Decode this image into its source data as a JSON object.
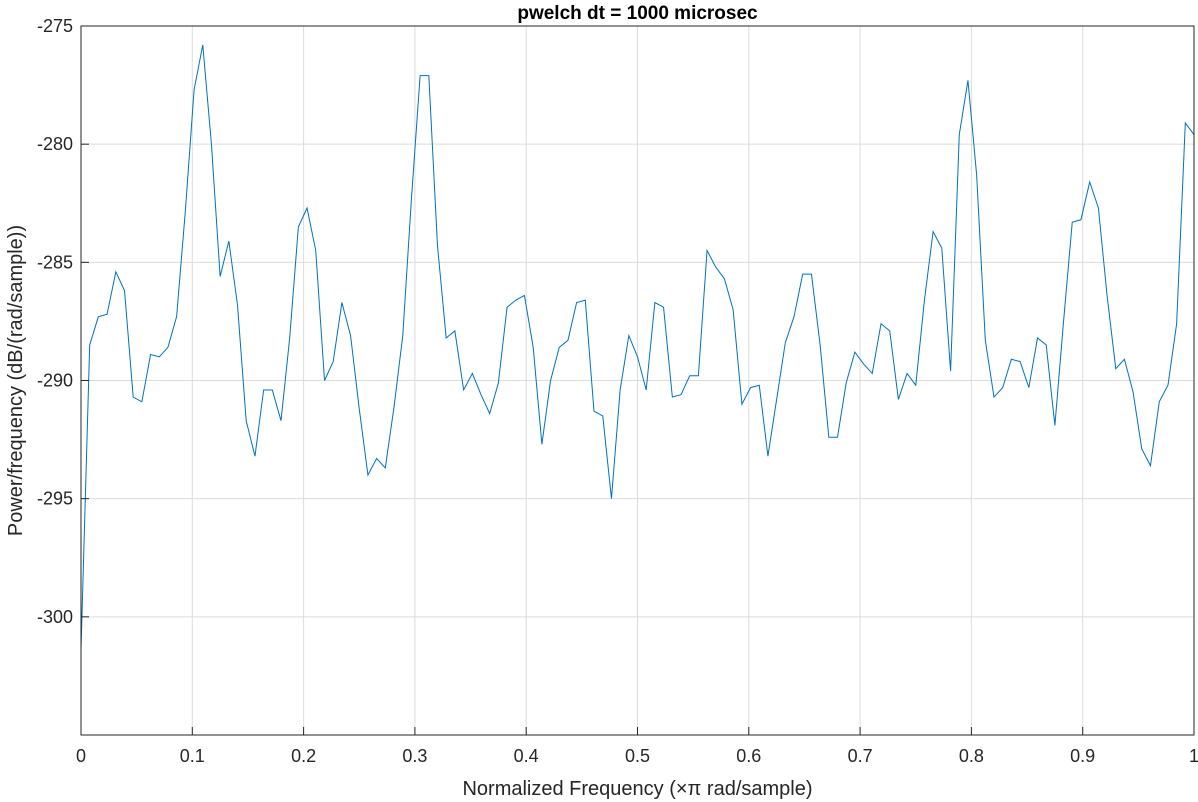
{
  "chart_data": {
    "type": "line",
    "title": "pwelch dt = 1000 microsec",
    "xlabel": "Normalized Frequency  (×π rad/sample)",
    "ylabel": "Power/frequency (dB/(rad/sample))",
    "xlim": [
      0,
      1
    ],
    "ylim": [
      -305,
      -275
    ],
    "xticks": [
      0,
      0.1,
      0.2,
      0.3,
      0.4,
      0.5,
      0.6,
      0.7,
      0.8,
      0.9,
      1
    ],
    "xtick_labels": [
      "0",
      "0.1",
      "0.2",
      "0.3",
      "0.4",
      "0.5",
      "0.6",
      "0.7",
      "0.8",
      "0.9",
      "1"
    ],
    "yticks": [
      -300,
      -295,
      -290,
      -285,
      -280,
      -275
    ],
    "ytick_labels": [
      "-300",
      "-295",
      "-290",
      "-285",
      "-280",
      "-275"
    ],
    "grid": true,
    "series": [
      {
        "color": "#0072bd",
        "x": [
          0,
          0.0078,
          0.0156,
          0.0234,
          0.0313,
          0.0391,
          0.0469,
          0.0547,
          0.0625,
          0.0703,
          0.0781,
          0.0859,
          0.0938,
          0.1016,
          0.1094,
          0.1172,
          0.125,
          0.1328,
          0.1406,
          0.1484,
          0.1563,
          0.1641,
          0.1719,
          0.1797,
          0.1875,
          0.1953,
          0.2031,
          0.2109,
          0.2188,
          0.2266,
          0.2344,
          0.2422,
          0.25,
          0.2578,
          0.2656,
          0.2734,
          0.2813,
          0.2891,
          0.2969,
          0.3047,
          0.3125,
          0.3203,
          0.3281,
          0.3359,
          0.3438,
          0.3516,
          0.3594,
          0.3672,
          0.375,
          0.3828,
          0.3906,
          0.3984,
          0.4063,
          0.4141,
          0.4219,
          0.4297,
          0.4375,
          0.4453,
          0.4531,
          0.4609,
          0.4688,
          0.4766,
          0.4844,
          0.4922,
          0.5,
          0.5078,
          0.5156,
          0.5234,
          0.5313,
          0.5391,
          0.5469,
          0.5547,
          0.5625,
          0.5703,
          0.5781,
          0.5859,
          0.5938,
          0.6016,
          0.6094,
          0.6172,
          0.625,
          0.6328,
          0.6406,
          0.6484,
          0.6563,
          0.6641,
          0.6719,
          0.6797,
          0.6875,
          0.6953,
          0.7031,
          0.7109,
          0.7188,
          0.7266,
          0.7344,
          0.7422,
          0.75,
          0.7578,
          0.7656,
          0.7734,
          0.7813,
          0.7891,
          0.7969,
          0.8047,
          0.8125,
          0.8203,
          0.8281,
          0.8359,
          0.8438,
          0.8516,
          0.8594,
          0.8672,
          0.875,
          0.8828,
          0.8906,
          0.8984,
          0.9063,
          0.9141,
          0.9219,
          0.9297,
          0.9375,
          0.9453,
          0.9531,
          0.9609,
          0.9688,
          0.9766,
          0.9844,
          0.9922,
          1
        ],
        "y": [
          -301.4,
          -288.5,
          -287.3,
          -287.2,
          -285.4,
          -286.2,
          -290.7,
          -290.9,
          -288.9,
          -289.0,
          -288.6,
          -287.3,
          -282.8,
          -277.7,
          -275.8,
          -280.0,
          -285.6,
          -284.1,
          -286.8,
          -291.7,
          -293.2,
          -290.4,
          -290.4,
          -291.7,
          -288.2,
          -283.5,
          -282.7,
          -284.5,
          -290.0,
          -289.2,
          -286.7,
          -288.1,
          -291.2,
          -294.0,
          -293.3,
          -293.7,
          -291.1,
          -288.1,
          -282.3,
          -277.1,
          -277.1,
          -284.3,
          -288.2,
          -287.9,
          -290.4,
          -289.7,
          -290.6,
          -291.4,
          -290.1,
          -286.9,
          -286.6,
          -286.4,
          -288.6,
          -292.7,
          -290.0,
          -288.6,
          -288.3,
          -286.7,
          -286.6,
          -291.3,
          -291.5,
          -295.0,
          -290.4,
          -288.1,
          -289.0,
          -290.4,
          -286.7,
          -286.9,
          -290.7,
          -290.6,
          -289.8,
          -289.8,
          -284.5,
          -285.2,
          -285.7,
          -287.0,
          -291.0,
          -290.3,
          -290.2,
          -293.2,
          -290.8,
          -288.4,
          -287.3,
          -285.5,
          -285.5,
          -288.5,
          -292.4,
          -292.4,
          -290.1,
          -288.8,
          -289.3,
          -289.7,
          -287.6,
          -287.9,
          -290.8,
          -289.7,
          -290.2,
          -286.6,
          -283.7,
          -284.4,
          -289.6,
          -279.6,
          -277.3,
          -281.3,
          -288.3,
          -290.7,
          -290.3,
          -289.1,
          -289.2,
          -290.3,
          -288.2,
          -288.5,
          -291.9,
          -287.5,
          -283.3,
          -283.2,
          -281.6,
          -282.7,
          -286.4,
          -289.5,
          -289.1,
          -290.5,
          -292.9,
          -293.6,
          -290.9,
          -290.2,
          -287.6,
          -279.1,
          -279.6
        ]
      }
    ]
  }
}
